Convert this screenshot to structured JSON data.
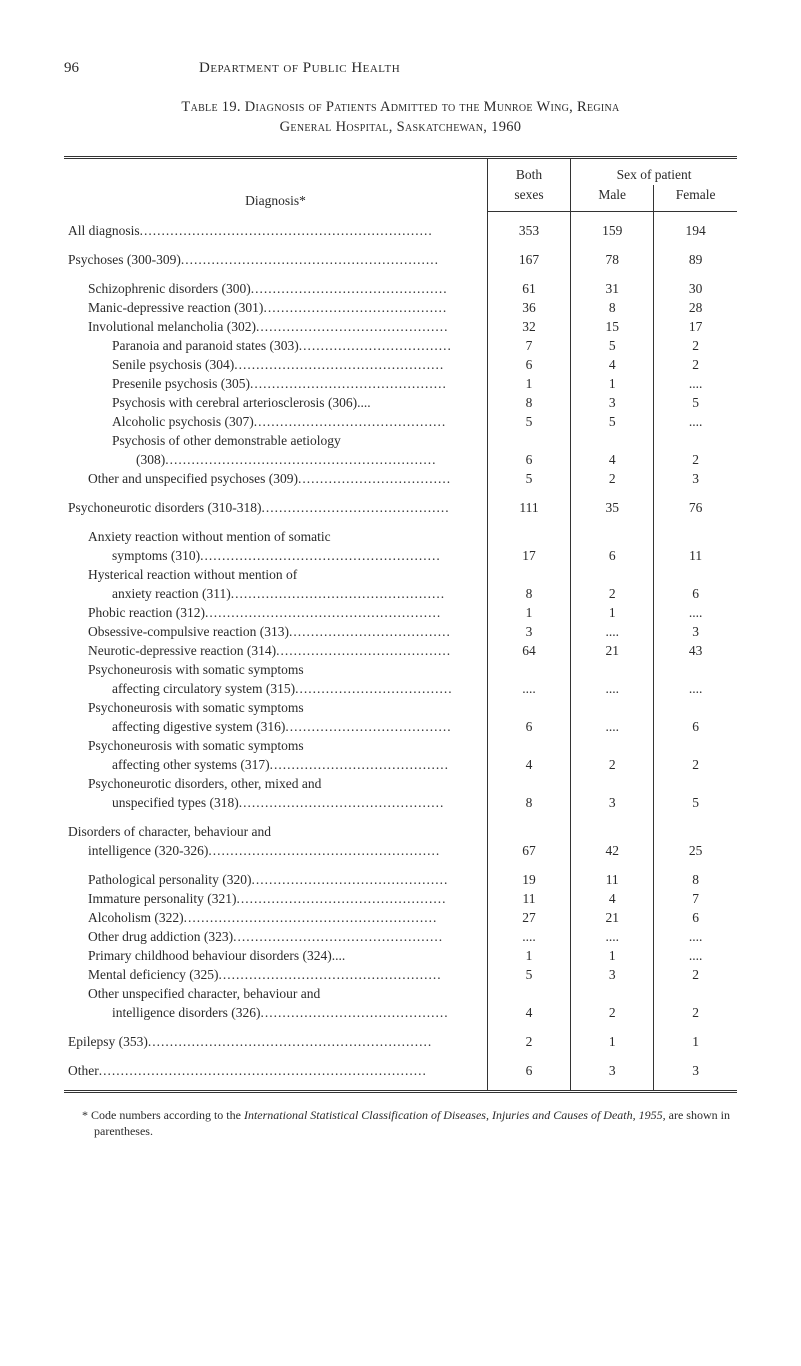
{
  "page": {
    "number": "96",
    "department": "Department of Public Health"
  },
  "caption": {
    "line1": "Table 19.  Diagnosis of Patients Admitted to the Munroe Wing, Regina",
    "line2": "General Hospital, Saskatchewan, 1960"
  },
  "headers": {
    "diagnosis": "Diagnosis*",
    "both_sexes_1": "Both",
    "both_sexes_2": "sexes",
    "sex_of_patient": "Sex of patient",
    "male": "Male",
    "female": "Female"
  },
  "rows": [
    {
      "spacer": true
    },
    {
      "indent": 0,
      "label": "All diagnosis",
      "both": "353",
      "male": "159",
      "female": "194"
    },
    {
      "spacer": true
    },
    {
      "indent": 0,
      "label": "Psychoses (300-309)",
      "both": "167",
      "male": "78",
      "female": "89"
    },
    {
      "spacer": true
    },
    {
      "indent": 1,
      "label": "Schizophrenic disorders (300)",
      "both": "61",
      "male": "31",
      "female": "30"
    },
    {
      "indent": 1,
      "label": "Manic-depressive reaction (301)",
      "both": "36",
      "male": "8",
      "female": "28"
    },
    {
      "indent": 1,
      "label": "Involutional melancholia (302)",
      "both": "32",
      "male": "15",
      "female": "17"
    },
    {
      "indent": 2,
      "label": "Paranoia and paranoid states (303)",
      "both": "7",
      "male": "5",
      "female": "2"
    },
    {
      "indent": 2,
      "label": "Senile psychosis (304)",
      "both": "6",
      "male": "4",
      "female": "2"
    },
    {
      "indent": 2,
      "label": "Presenile psychosis (305)",
      "both": "1",
      "male": "1",
      "female": "...."
    },
    {
      "indent": 2,
      "label": "Psychosis with cerebral arteriosclerosis (306)....",
      "both": "8",
      "male": "3",
      "female": "5",
      "noleader": true
    },
    {
      "indent": 2,
      "label": "Alcoholic psychosis (307)",
      "both": "5",
      "male": "5",
      "female": "...."
    },
    {
      "indent": 2,
      "label": "Psychosis of other demonstrable aetiology",
      "both": "",
      "male": "",
      "female": "",
      "noleader": true
    },
    {
      "indent": 3,
      "label": "(308)",
      "both": "6",
      "male": "4",
      "female": "2"
    },
    {
      "indent": 1,
      "label": "Other and unspecified psychoses (309)",
      "both": "5",
      "male": "2",
      "female": "3"
    },
    {
      "spacer": true
    },
    {
      "indent": 0,
      "label": "Psychoneurotic disorders (310-318)",
      "both": "111",
      "male": "35",
      "female": "76"
    },
    {
      "spacer": true
    },
    {
      "indent": 1,
      "label": "Anxiety reaction without mention of somatic",
      "both": "",
      "male": "",
      "female": "",
      "noleader": true
    },
    {
      "indent": 2,
      "label": "symptoms (310)",
      "both": "17",
      "male": "6",
      "female": "11"
    },
    {
      "indent": 1,
      "label": "Hysterical reaction without mention of",
      "both": "",
      "male": "",
      "female": "",
      "noleader": true
    },
    {
      "indent": 2,
      "label": "anxiety reaction (311)",
      "both": "8",
      "male": "2",
      "female": "6"
    },
    {
      "indent": 1,
      "label": "Phobic reaction (312)",
      "both": "1",
      "male": "1",
      "female": "...."
    },
    {
      "indent": 1,
      "label": "Obsessive-compulsive reaction (313)",
      "both": "3",
      "male": "....",
      "female": "3"
    },
    {
      "indent": 1,
      "label": "Neurotic-depressive reaction (314)",
      "both": "64",
      "male": "21",
      "female": "43"
    },
    {
      "indent": 1,
      "label": "Psychoneurosis with somatic symptoms",
      "both": "",
      "male": "",
      "female": "",
      "noleader": true
    },
    {
      "indent": 2,
      "label": "affecting circulatory system (315)",
      "both": "....",
      "male": "....",
      "female": "...."
    },
    {
      "indent": 1,
      "label": "Psychoneurosis with somatic symptoms",
      "both": "",
      "male": "",
      "female": "",
      "noleader": true
    },
    {
      "indent": 2,
      "label": "affecting digestive system (316)",
      "both": "6",
      "male": "....",
      "female": "6"
    },
    {
      "indent": 1,
      "label": "Psychoneurosis with somatic symptoms",
      "both": "",
      "male": "",
      "female": "",
      "noleader": true
    },
    {
      "indent": 2,
      "label": "affecting other systems (317)",
      "both": "4",
      "male": "2",
      "female": "2"
    },
    {
      "indent": 1,
      "label": "Psychoneurotic disorders, other, mixed and",
      "both": "",
      "male": "",
      "female": "",
      "noleader": true
    },
    {
      "indent": 2,
      "label": "unspecified types (318)",
      "both": "8",
      "male": "3",
      "female": "5"
    },
    {
      "spacer": true
    },
    {
      "indent": 0,
      "label": "Disorders of character, behaviour and",
      "both": "",
      "male": "",
      "female": "",
      "noleader": true
    },
    {
      "indent": 1,
      "label": "intelligence (320-326)",
      "both": "67",
      "male": "42",
      "female": "25"
    },
    {
      "spacer": true
    },
    {
      "indent": 1,
      "label": "Pathological personality (320)",
      "both": "19",
      "male": "11",
      "female": "8"
    },
    {
      "indent": 1,
      "label": "Immature personality (321)",
      "both": "11",
      "male": "4",
      "female": "7"
    },
    {
      "indent": 1,
      "label": "Alcoholism (322)",
      "both": "27",
      "male": "21",
      "female": "6"
    },
    {
      "indent": 1,
      "label": "Other drug addiction (323)",
      "both": "....",
      "male": "....",
      "female": "...."
    },
    {
      "indent": 1,
      "label": "Primary childhood behaviour disorders (324)....",
      "both": "1",
      "male": "1",
      "female": "....",
      "noleader": true
    },
    {
      "indent": 1,
      "label": "Mental deficiency (325)",
      "both": "5",
      "male": "3",
      "female": "2"
    },
    {
      "indent": 1,
      "label": "Other unspecified character, behaviour and",
      "both": "",
      "male": "",
      "female": "",
      "noleader": true
    },
    {
      "indent": 2,
      "label": "intelligence disorders (326)",
      "both": "4",
      "male": "2",
      "female": "2"
    },
    {
      "spacer": true
    },
    {
      "indent": 0,
      "label": "Epilepsy (353)",
      "both": "2",
      "male": "1",
      "female": "1"
    },
    {
      "spacer": true
    },
    {
      "indent": 0,
      "label": "Other",
      "both": "6",
      "male": "3",
      "female": "3"
    },
    {
      "spacer": true
    }
  ],
  "footnote": {
    "marker": "*",
    "pre": " Code numbers according to the ",
    "italic": "International Statistical Classification of Diseases, Injuries and Causes of Death, 1955,",
    "post": " are shown in parentheses."
  },
  "layout": {
    "label_col_width": 395,
    "leader_char": "."
  }
}
